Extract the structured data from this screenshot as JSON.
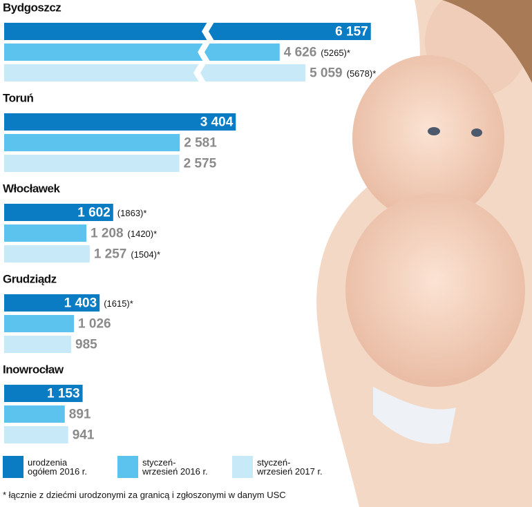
{
  "chart_data": {
    "type": "bar",
    "orientation": "horizontal",
    "categories": [
      "Bydgoszcz",
      "Toruń",
      "Włocławek",
      "Grudziądz",
      "Inowrocław"
    ],
    "series": [
      {
        "name": "urodzenia\nogółem 2016 r.",
        "color": "#0a7cc4",
        "values": [
          6157,
          3404,
          1602,
          1403,
          1153
        ],
        "value_labels": [
          "6 157",
          "3 404",
          "1 602",
          "1 403",
          "1 153"
        ],
        "value_notes": [
          null,
          null,
          "(1863)*",
          "(1615)*",
          null
        ]
      },
      {
        "name": "styczeń-\nwrzesień 2016 r.",
        "color": "#5cc3ee",
        "values": [
          4626,
          2581,
          1208,
          1026,
          891
        ],
        "value_labels": [
          "4 626",
          "2 581",
          "1 208",
          "1 026",
          "891"
        ],
        "value_notes": [
          "(5265)*",
          null,
          "(1420)*",
          null,
          null
        ]
      },
      {
        "name": "styczeń-\nwrzesień 2017 r.",
        "color": "#c8e9f8",
        "values": [
          5059,
          2575,
          1257,
          985,
          941
        ],
        "value_labels": [
          "5 059",
          "2 575",
          "1 257",
          "985",
          "941"
        ],
        "value_notes": [
          "(5678)*",
          null,
          "(1504)*",
          null,
          null
        ]
      }
    ],
    "broken_categories": [
      0
    ],
    "footnote": "* łącznie z dziećmi urodzonymi za granicą i zgłoszonymi w danym USC"
  }
}
